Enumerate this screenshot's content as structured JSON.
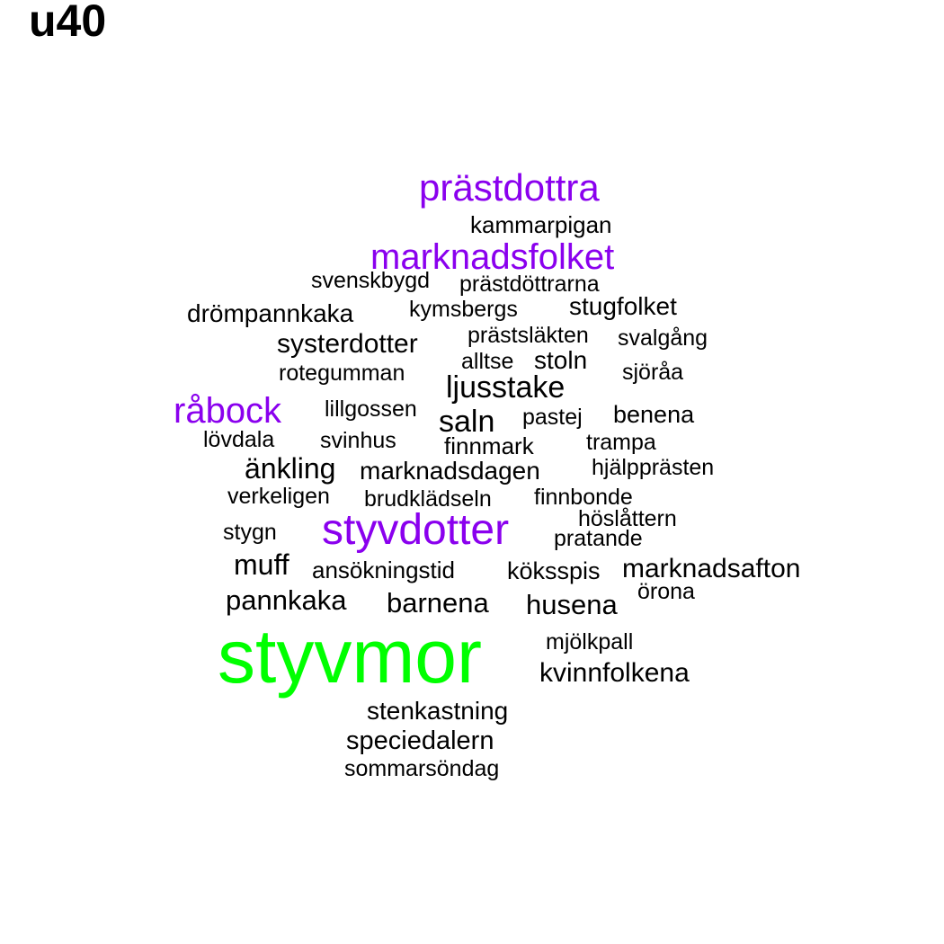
{
  "title": "u40",
  "colors": {
    "top": "#00ff00",
    "high": "#8a00ee",
    "normal": "#000000"
  },
  "words": [
    {
      "text": "styvmor",
      "weight": "top"
    },
    {
      "text": "prästdottra",
      "weight": "high"
    },
    {
      "text": "marknadsfolket",
      "weight": "high"
    },
    {
      "text": "råbock",
      "weight": "high"
    },
    {
      "text": "styvdotter",
      "weight": "high"
    },
    {
      "text": "kammarpigan",
      "weight": "normal"
    },
    {
      "text": "svenskbygd",
      "weight": "normal"
    },
    {
      "text": "prästdöttrarna",
      "weight": "normal"
    },
    {
      "text": "drömpannkaka",
      "weight": "normal"
    },
    {
      "text": "kymsbergs",
      "weight": "normal"
    },
    {
      "text": "stugfolket",
      "weight": "normal"
    },
    {
      "text": "systerdotter",
      "weight": "normal"
    },
    {
      "text": "prästsläkten",
      "weight": "normal"
    },
    {
      "text": "svalgång",
      "weight": "normal"
    },
    {
      "text": "alltse",
      "weight": "normal"
    },
    {
      "text": "stoln",
      "weight": "normal"
    },
    {
      "text": "rotegumman",
      "weight": "normal"
    },
    {
      "text": "sjöråa",
      "weight": "normal"
    },
    {
      "text": "ljusstake",
      "weight": "normal"
    },
    {
      "text": "lillgossen",
      "weight": "normal"
    },
    {
      "text": "saln",
      "weight": "normal"
    },
    {
      "text": "pastej",
      "weight": "normal"
    },
    {
      "text": "benena",
      "weight": "normal"
    },
    {
      "text": "lövdala",
      "weight": "normal"
    },
    {
      "text": "svinhus",
      "weight": "normal"
    },
    {
      "text": "finnmark",
      "weight": "normal"
    },
    {
      "text": "trampa",
      "weight": "normal"
    },
    {
      "text": "änkling",
      "weight": "normal"
    },
    {
      "text": "marknadsdagen",
      "weight": "normal"
    },
    {
      "text": "hjälpprästen",
      "weight": "normal"
    },
    {
      "text": "verkeligen",
      "weight": "normal"
    },
    {
      "text": "brudklädseln",
      "weight": "normal"
    },
    {
      "text": "finnbonde",
      "weight": "normal"
    },
    {
      "text": "höslåttern",
      "weight": "normal"
    },
    {
      "text": "stygn",
      "weight": "normal"
    },
    {
      "text": "pratande",
      "weight": "normal"
    },
    {
      "text": "muff",
      "weight": "normal"
    },
    {
      "text": "ansökningstid",
      "weight": "normal"
    },
    {
      "text": "köksspis",
      "weight": "normal"
    },
    {
      "text": "marknadsafton",
      "weight": "normal"
    },
    {
      "text": "pannkaka",
      "weight": "normal"
    },
    {
      "text": "barnena",
      "weight": "normal"
    },
    {
      "text": "husena",
      "weight": "normal"
    },
    {
      "text": "örona",
      "weight": "normal"
    },
    {
      "text": "mjölkpall",
      "weight": "normal"
    },
    {
      "text": "kvinnfolkena",
      "weight": "normal"
    },
    {
      "text": "stenkastning",
      "weight": "normal"
    },
    {
      "text": "speciedalern",
      "weight": "normal"
    },
    {
      "text": "sommarsöndag",
      "weight": "normal"
    }
  ]
}
